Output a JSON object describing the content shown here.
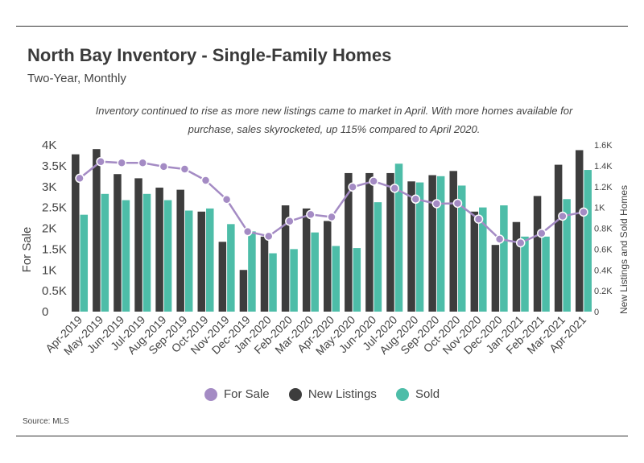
{
  "header": {
    "title": "North Bay Inventory - Single-Family Homes",
    "subtitle": "Two-Year, Monthly",
    "note": "Inventory continued to rise as more new listings came to market in April. With more homes available for purchase, sales skyrocketed, up 115% compared to April 2020."
  },
  "source": "Source: MLS",
  "colors": {
    "for_sale": "#a48bc4",
    "new_listings": "#3d3d3d",
    "sold": "#4dbda8"
  },
  "legend": [
    {
      "label": "For Sale",
      "color": "#a48bc4"
    },
    {
      "label": "New Listings",
      "color": "#3d3d3d"
    },
    {
      "label": "Sold",
      "color": "#4dbda8"
    }
  ],
  "chart_data": {
    "type": "bar",
    "categories": [
      "Apr-2019",
      "May-2019",
      "Jun-2019",
      "Jul-2019",
      "Aug-2019",
      "Sep-2019",
      "Oct-2019",
      "Nov-2019",
      "Dec-2019",
      "Jan-2020",
      "Feb-2020",
      "Mar-2020",
      "Apr-2020",
      "May-2020",
      "Jun-2020",
      "Jul-2020",
      "Aug-2020",
      "Sep-2020",
      "Oct-2020",
      "Nov-2020",
      "Dec-2020",
      "Jan-2021",
      "Feb-2021",
      "Mar-2021",
      "Apr-2021"
    ],
    "ylabel": "For Sale",
    "ylabel_right": "New Listings and Sold Homes",
    "ylim": [
      0,
      4000
    ],
    "yticks": [
      0,
      500,
      1000,
      1500,
      2000,
      2500,
      3000,
      3500,
      4000
    ],
    "ytick_labels": [
      "0",
      "0.5K",
      "1K",
      "1.5K",
      "2K",
      "2.5K",
      "3K",
      "3.5K",
      "4K"
    ],
    "ylim_right": [
      0,
      1600
    ],
    "yticks_right": [
      0,
      200,
      400,
      600,
      800,
      1000,
      1200,
      1400,
      1600
    ],
    "ytick_labels_right": [
      "0",
      "0.2K",
      "0.4K",
      "0.6K",
      "0.8K",
      "1K",
      "1.2K",
      "1.4K",
      "1.6K"
    ],
    "series": [
      {
        "name": "New Listings",
        "type": "bar",
        "axis": "right",
        "values": [
          1510,
          1560,
          1320,
          1280,
          1190,
          1170,
          960,
          670,
          400,
          720,
          1020,
          990,
          870,
          1330,
          1330,
          1330,
          1250,
          1310,
          1350,
          960,
          640,
          860,
          1110,
          1410,
          1550
        ]
      },
      {
        "name": "Sold",
        "type": "bar",
        "axis": "right",
        "values": [
          930,
          1130,
          1070,
          1130,
          1070,
          970,
          990,
          840,
          770,
          560,
          600,
          760,
          630,
          610,
          1050,
          1420,
          1240,
          1300,
          1210,
          1000,
          1020,
          720,
          720,
          1080,
          1360
        ]
      },
      {
        "name": "For Sale",
        "type": "line",
        "axis": "left",
        "values": [
          3200,
          3600,
          3570,
          3570,
          3480,
          3420,
          3150,
          2690,
          1920,
          1810,
          2170,
          2330,
          2270,
          2990,
          3130,
          2960,
          2700,
          2590,
          2600,
          2220,
          1740,
          1650,
          1880,
          2290,
          2390
        ]
      }
    ]
  }
}
